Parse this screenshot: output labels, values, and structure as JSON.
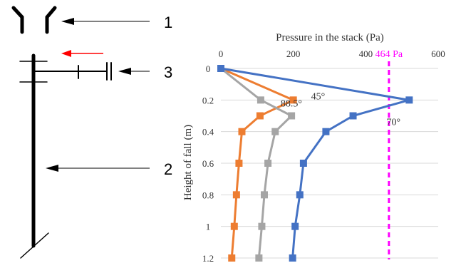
{
  "diagram": {
    "callouts": [
      {
        "id": "c1",
        "label": "1"
      },
      {
        "id": "c2",
        "label": "2"
      },
      {
        "id": "c3",
        "label": "3"
      }
    ],
    "colors": {
      "structure": "#000000",
      "flow_arrow": "#ff0000"
    }
  },
  "chart_data": {
    "type": "line",
    "title": "Pressure in the stack (Pa)",
    "xlabel": "",
    "ylabel": "Height of fall (m)",
    "x_axis_position": "top",
    "y_axis_inverted": true,
    "xlim": [
      0,
      600
    ],
    "ylim": [
      0,
      1.2
    ],
    "x_ticks": [
      "0",
      "200",
      "400",
      "600"
    ],
    "y_ticks": [
      "0",
      "0.2",
      "0.4",
      "0.6",
      "0.8",
      "1",
      "1.2"
    ],
    "grid": "horizontal",
    "series": [
      {
        "name": "",
        "color": "#ed7d31",
        "label": "45°",
        "points": [
          [
            0,
            0
          ],
          [
            200,
            0.2
          ],
          [
            108,
            0.3
          ],
          [
            58,
            0.4
          ],
          [
            50,
            0.6
          ],
          [
            43,
            0.8
          ],
          [
            37,
            1.0
          ],
          [
            30,
            1.2
          ]
        ]
      },
      {
        "name": "",
        "color": "#a5a5a5",
        "label": "88.5°",
        "points": [
          [
            0,
            0
          ],
          [
            110,
            0.2
          ],
          [
            195,
            0.3
          ],
          [
            150,
            0.4
          ],
          [
            130,
            0.6
          ],
          [
            120,
            0.8
          ],
          [
            113,
            1.0
          ],
          [
            105,
            1.2
          ]
        ]
      },
      {
        "name": "",
        "color": "#4472c4",
        "label": "70°",
        "points": [
          [
            0,
            0
          ],
          [
            520,
            0.2
          ],
          [
            365,
            0.3
          ],
          [
            290,
            0.4
          ],
          [
            228,
            0.6
          ],
          [
            218,
            0.8
          ],
          [
            205,
            1.0
          ],
          [
            198,
            1.2
          ]
        ]
      }
    ],
    "reference_line": {
      "value": 464,
      "label_value": "464",
      "label_unit": " Pa",
      "color": "#ff00ff",
      "style": "dashed"
    }
  }
}
